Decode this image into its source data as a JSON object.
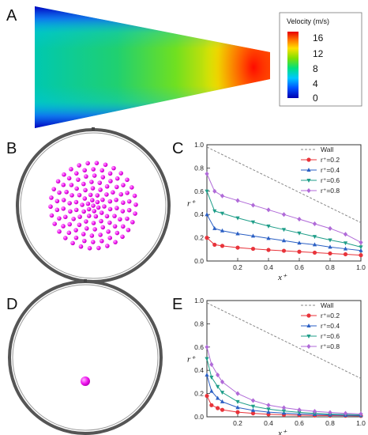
{
  "panels": {
    "A": "A",
    "B": "B",
    "C": "C",
    "D": "D",
    "E": "E"
  },
  "colorbar": {
    "title": "Velocity (m/s)",
    "ticks": [
      "16",
      "12",
      "8",
      "4",
      "0"
    ]
  },
  "colors": {
    "s02": "#e8333a",
    "s04": "#2a5fc4",
    "s06": "#1f9e89",
    "s08": "#b06ad8",
    "wall": "#888888",
    "particle": "#ee11ee"
  },
  "chart_data": [
    {
      "panel": "C",
      "type": "line",
      "xlabel": "x⁺",
      "ylabel": "r⁺",
      "xlim": [
        0,
        1.0
      ],
      "ylim": [
        0,
        1.0
      ],
      "x_ticks": [
        "0.2",
        "0.4",
        "0.6",
        "0.8",
        "1.0"
      ],
      "y_ticks": [
        "0.0",
        "0.2",
        "0.4",
        "0.6",
        "0.8",
        "1.0"
      ],
      "legend_position": "top-right",
      "wall": {
        "name": "Wall",
        "x": [
          0,
          1.0
        ],
        "y": [
          0.98,
          0.33
        ]
      },
      "series": [
        {
          "name": "r⁺=0.2",
          "marker": "circle",
          "x": [
            0,
            0.05,
            0.1,
            0.2,
            0.3,
            0.4,
            0.5,
            0.6,
            0.7,
            0.8,
            0.9,
            1.0
          ],
          "y": [
            0.2,
            0.14,
            0.13,
            0.115,
            0.105,
            0.095,
            0.088,
            0.08,
            0.072,
            0.065,
            0.058,
            0.05
          ]
        },
        {
          "name": "r⁺=0.4",
          "marker": "triangle",
          "x": [
            0,
            0.05,
            0.1,
            0.2,
            0.3,
            0.4,
            0.5,
            0.6,
            0.7,
            0.8,
            0.9,
            1.0
          ],
          "y": [
            0.4,
            0.28,
            0.26,
            0.235,
            0.215,
            0.195,
            0.175,
            0.155,
            0.14,
            0.12,
            0.105,
            0.09
          ]
        },
        {
          "name": "r⁺=0.6",
          "marker": "tri-down",
          "x": [
            0,
            0.05,
            0.1,
            0.2,
            0.3,
            0.4,
            0.5,
            0.6,
            0.7,
            0.8,
            0.9,
            1.0
          ],
          "y": [
            0.6,
            0.43,
            0.41,
            0.37,
            0.335,
            0.3,
            0.27,
            0.24,
            0.21,
            0.18,
            0.155,
            0.12
          ]
        },
        {
          "name": "r⁺=0.8",
          "marker": "diamond",
          "x": [
            0,
            0.05,
            0.1,
            0.2,
            0.3,
            0.4,
            0.5,
            0.6,
            0.7,
            0.8,
            0.9,
            1.0
          ],
          "y": [
            0.75,
            0.6,
            0.56,
            0.52,
            0.48,
            0.44,
            0.4,
            0.36,
            0.32,
            0.28,
            0.23,
            0.16
          ]
        }
      ]
    },
    {
      "panel": "E",
      "type": "line",
      "xlabel": "x⁺",
      "ylabel": "r⁺",
      "xlim": [
        0,
        1.0
      ],
      "ylim": [
        0,
        1.0
      ],
      "x_ticks": [
        "0.2",
        "0.4",
        "0.6",
        "0.8",
        "1.0"
      ],
      "y_ticks": [
        "0.0",
        "0.2",
        "0.4",
        "0.6",
        "0.8",
        "1.0"
      ],
      "legend_position": "top-right",
      "wall": {
        "name": "Wall",
        "x": [
          0,
          1.0
        ],
        "y": [
          0.98,
          0.33
        ]
      },
      "series": [
        {
          "name": "r⁺=0.2",
          "marker": "circle",
          "x": [
            0,
            0.03,
            0.07,
            0.1,
            0.2,
            0.3,
            0.4,
            0.5,
            0.6,
            0.7,
            0.8,
            0.9,
            1.0
          ],
          "y": [
            0.18,
            0.1,
            0.075,
            0.06,
            0.04,
            0.03,
            0.022,
            0.018,
            0.014,
            0.012,
            0.01,
            0.009,
            0.008
          ]
        },
        {
          "name": "r⁺=0.4",
          "marker": "triangle",
          "x": [
            0,
            0.03,
            0.07,
            0.1,
            0.2,
            0.3,
            0.4,
            0.5,
            0.6,
            0.7,
            0.8,
            0.9,
            1.0
          ],
          "y": [
            0.36,
            0.22,
            0.16,
            0.13,
            0.08,
            0.055,
            0.04,
            0.032,
            0.025,
            0.02,
            0.016,
            0.013,
            0.011
          ]
        },
        {
          "name": "r⁺=0.6",
          "marker": "tri-down",
          "x": [
            0,
            0.03,
            0.07,
            0.1,
            0.2,
            0.3,
            0.4,
            0.5,
            0.6,
            0.7,
            0.8,
            0.9,
            1.0
          ],
          "y": [
            0.5,
            0.34,
            0.26,
            0.21,
            0.13,
            0.09,
            0.066,
            0.05,
            0.038,
            0.03,
            0.024,
            0.02,
            0.016
          ]
        },
        {
          "name": "r⁺=0.8",
          "marker": "diamond",
          "x": [
            0,
            0.03,
            0.07,
            0.1,
            0.2,
            0.3,
            0.4,
            0.5,
            0.6,
            0.7,
            0.8,
            0.9,
            1.0
          ],
          "y": [
            0.6,
            0.45,
            0.36,
            0.3,
            0.2,
            0.14,
            0.1,
            0.078,
            0.06,
            0.047,
            0.037,
            0.03,
            0.025
          ]
        }
      ]
    }
  ]
}
